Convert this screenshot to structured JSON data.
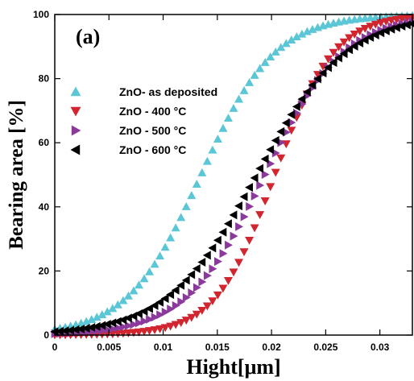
{
  "chart_data": {
    "type": "scatter",
    "panel_label": "(a)",
    "xlabel": "Hight[μm]",
    "ylabel": "Bearing area [%]",
    "xlim": [
      0,
      0.033
    ],
    "ylim": [
      0,
      100
    ],
    "x_ticks": [
      0,
      0.005,
      0.01,
      0.015,
      0.02,
      0.025,
      0.03
    ],
    "x_tick_labels": [
      "0",
      "0.005",
      "0.01",
      "0.015",
      "0.02",
      "0.025",
      "0.03"
    ],
    "y_ticks": [
      0,
      20,
      40,
      60,
      80,
      100
    ],
    "y_tick_labels": [
      "0",
      "20",
      "40",
      "60",
      "80",
      "100"
    ],
    "grid": false,
    "legend_position": "upper-left",
    "series": [
      {
        "name": "ZnO- as deposited",
        "color": "#5bc6d6",
        "marker": "triangle-up",
        "center": 0.0135,
        "scale": 0.0034
      },
      {
        "name": "ZnO - 400 °C",
        "color": "#d1262f",
        "marker": "triangle-down",
        "center": 0.0203,
        "scale": 0.0027
      },
      {
        "name": "ZnO - 500 °C",
        "color": "#8b3a9c",
        "marker": "triangle-right",
        "center": 0.0194,
        "scale": 0.0036
      },
      {
        "name": "ZnO - 600 °C",
        "color": "#000000",
        "marker": "triangle-left",
        "center": 0.0186,
        "scale": 0.0041
      }
    ]
  }
}
